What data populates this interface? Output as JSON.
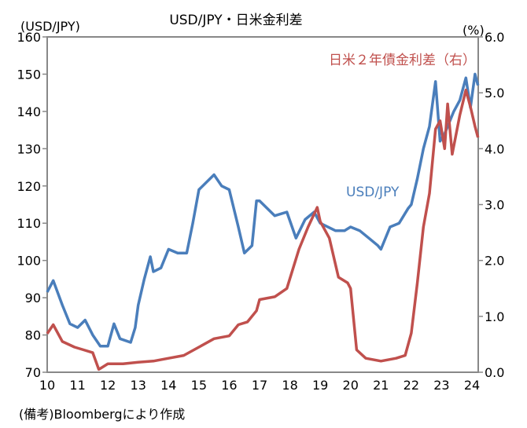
{
  "chart_data": {
    "type": "line",
    "title": "USD/JPY・日米金利差",
    "ylabel_left": "(USD/JPY)",
    "ylabel_right": "(%)",
    "ylim_left": [
      70,
      160
    ],
    "ylim_right": [
      0,
      6.0
    ],
    "yticks_left": [
      "160",
      "150",
      "140",
      "130",
      "120",
      "110",
      "100",
      "90",
      "80",
      "70"
    ],
    "yticks_right": [
      "6.0",
      "5.0",
      "4.0",
      "3.0",
      "2.0",
      "1.0",
      "0.0"
    ],
    "xticks": [
      "10",
      "11",
      "12",
      "13",
      "14",
      "15",
      "16",
      "17",
      "18",
      "19",
      "20",
      "21",
      "22",
      "23",
      "24"
    ],
    "xlim": [
      2010,
      2024.4
    ],
    "grid": false,
    "colors": {
      "usdjpy": "#4a7ebb",
      "spread": "#c0504d",
      "axis": "#888888"
    },
    "series": [
      {
        "name": "USD/JPY",
        "axis": "left",
        "x": [
          2010.0,
          2010.2,
          2010.5,
          2010.75,
          2011.0,
          2011.25,
          2011.5,
          2011.75,
          2012.0,
          2012.2,
          2012.4,
          2012.75,
          2012.9,
          2013.0,
          2013.2,
          2013.4,
          2013.5,
          2013.75,
          2014.0,
          2014.3,
          2014.6,
          2014.8,
          2015.0,
          2015.5,
          2015.75,
          2016.0,
          2016.3,
          2016.5,
          2016.75,
          2016.9,
          2017.0,
          2017.5,
          2017.9,
          2018.2,
          2018.5,
          2018.8,
          2019.0,
          2019.5,
          2019.8,
          2020.0,
          2020.3,
          2020.6,
          2020.9,
          2021.0,
          2021.3,
          2021.6,
          2021.9,
          2022.0,
          2022.2,
          2022.4,
          2022.6,
          2022.8,
          2022.95,
          2023.1,
          2023.4,
          2023.6,
          2023.8,
          2023.95,
          2024.1,
          2024.2
        ],
        "values": [
          91.5,
          94.6,
          88,
          83,
          82,
          84,
          80,
          77,
          77,
          83,
          79,
          78,
          82,
          88,
          95,
          101,
          97,
          98,
          103,
          102,
          102,
          110,
          119,
          123,
          120,
          119,
          109,
          102,
          104,
          116,
          116,
          112,
          113,
          106,
          111,
          113,
          110,
          108,
          108,
          109,
          108,
          106,
          104,
          103,
          109,
          110,
          114,
          115,
          122,
          130,
          136,
          148,
          132,
          134,
          140,
          143,
          149,
          141,
          150,
          147
        ]
      },
      {
        "name": "日米2年債金利差(右)",
        "axis": "right",
        "x": [
          2010.0,
          2010.2,
          2010.5,
          2010.9,
          2011.2,
          2011.5,
          2011.7,
          2012.0,
          2012.5,
          2013.0,
          2013.5,
          2014.0,
          2014.5,
          2015.0,
          2015.5,
          2016.0,
          2016.3,
          2016.6,
          2016.9,
          2017.0,
          2017.5,
          2017.9,
          2018.3,
          2018.6,
          2018.9,
          2019.0,
          2019.3,
          2019.6,
          2019.9,
          2020.0,
          2020.2,
          2020.5,
          2021.0,
          2021.5,
          2021.8,
          2022.0,
          2022.2,
          2022.4,
          2022.6,
          2022.8,
          2022.95,
          2023.1,
          2023.2,
          2023.35,
          2023.6,
          2023.8,
          2023.95,
          2024.1,
          2024.2
        ],
        "values": [
          0.69,
          0.85,
          0.55,
          0.45,
          0.4,
          0.35,
          0.05,
          0.15,
          0.15,
          0.18,
          0.2,
          0.25,
          0.3,
          0.45,
          0.6,
          0.65,
          0.85,
          0.9,
          1.1,
          1.3,
          1.35,
          1.5,
          2.2,
          2.6,
          2.95,
          2.7,
          2.4,
          1.7,
          1.6,
          1.5,
          0.4,
          0.25,
          0.2,
          0.25,
          0.3,
          0.7,
          1.6,
          2.6,
          3.2,
          4.35,
          4.5,
          4.0,
          4.8,
          3.9,
          4.6,
          5.05,
          4.75,
          4.4,
          4.2
        ]
      }
    ],
    "annotations": {
      "usdjpy_label": "USD/JPY",
      "spread_label": "日米２年債金利差（右）"
    },
    "source": "(備考)Bloombergにより作成"
  }
}
